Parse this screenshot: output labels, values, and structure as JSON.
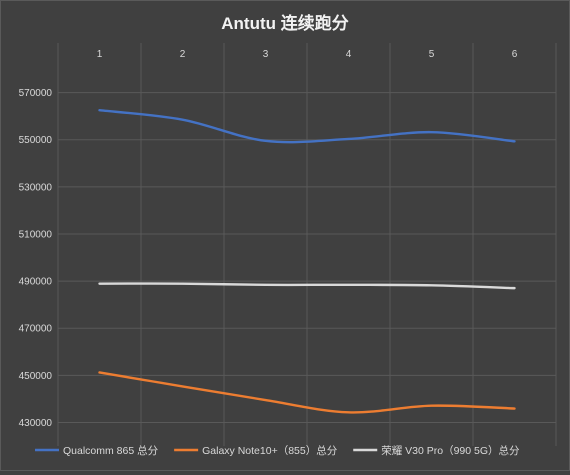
{
  "chart_data": {
    "type": "line",
    "title": "Antutu 连续跑分",
    "xlabel": "",
    "ylabel": "",
    "categories": [
      "1",
      "2",
      "3",
      "4",
      "5",
      "6"
    ],
    "y_ticks": [
      "570000",
      "550000",
      "530000",
      "510000",
      "490000",
      "470000",
      "450000",
      "430000"
    ],
    "ylim": [
      420000,
      580000
    ],
    "x_axis_position": "top",
    "grid": true,
    "legend_position": "bottom",
    "series": [
      {
        "name": "Qualcomm 865 总分",
        "color": "#4472c4",
        "values": [
          562500,
          558500,
          549500,
          550300,
          553200,
          549300
        ]
      },
      {
        "name": "Galaxy Note10+（855）总分",
        "color": "#ed7d31",
        "values": [
          451200,
          445300,
          439500,
          434300,
          437100,
          435900
        ]
      },
      {
        "name": "荣耀 V30 Pro（990 5G）总分",
        "color": "#d9d9d9",
        "values": [
          488900,
          488900,
          488400,
          488400,
          488200,
          487000
        ]
      }
    ]
  }
}
